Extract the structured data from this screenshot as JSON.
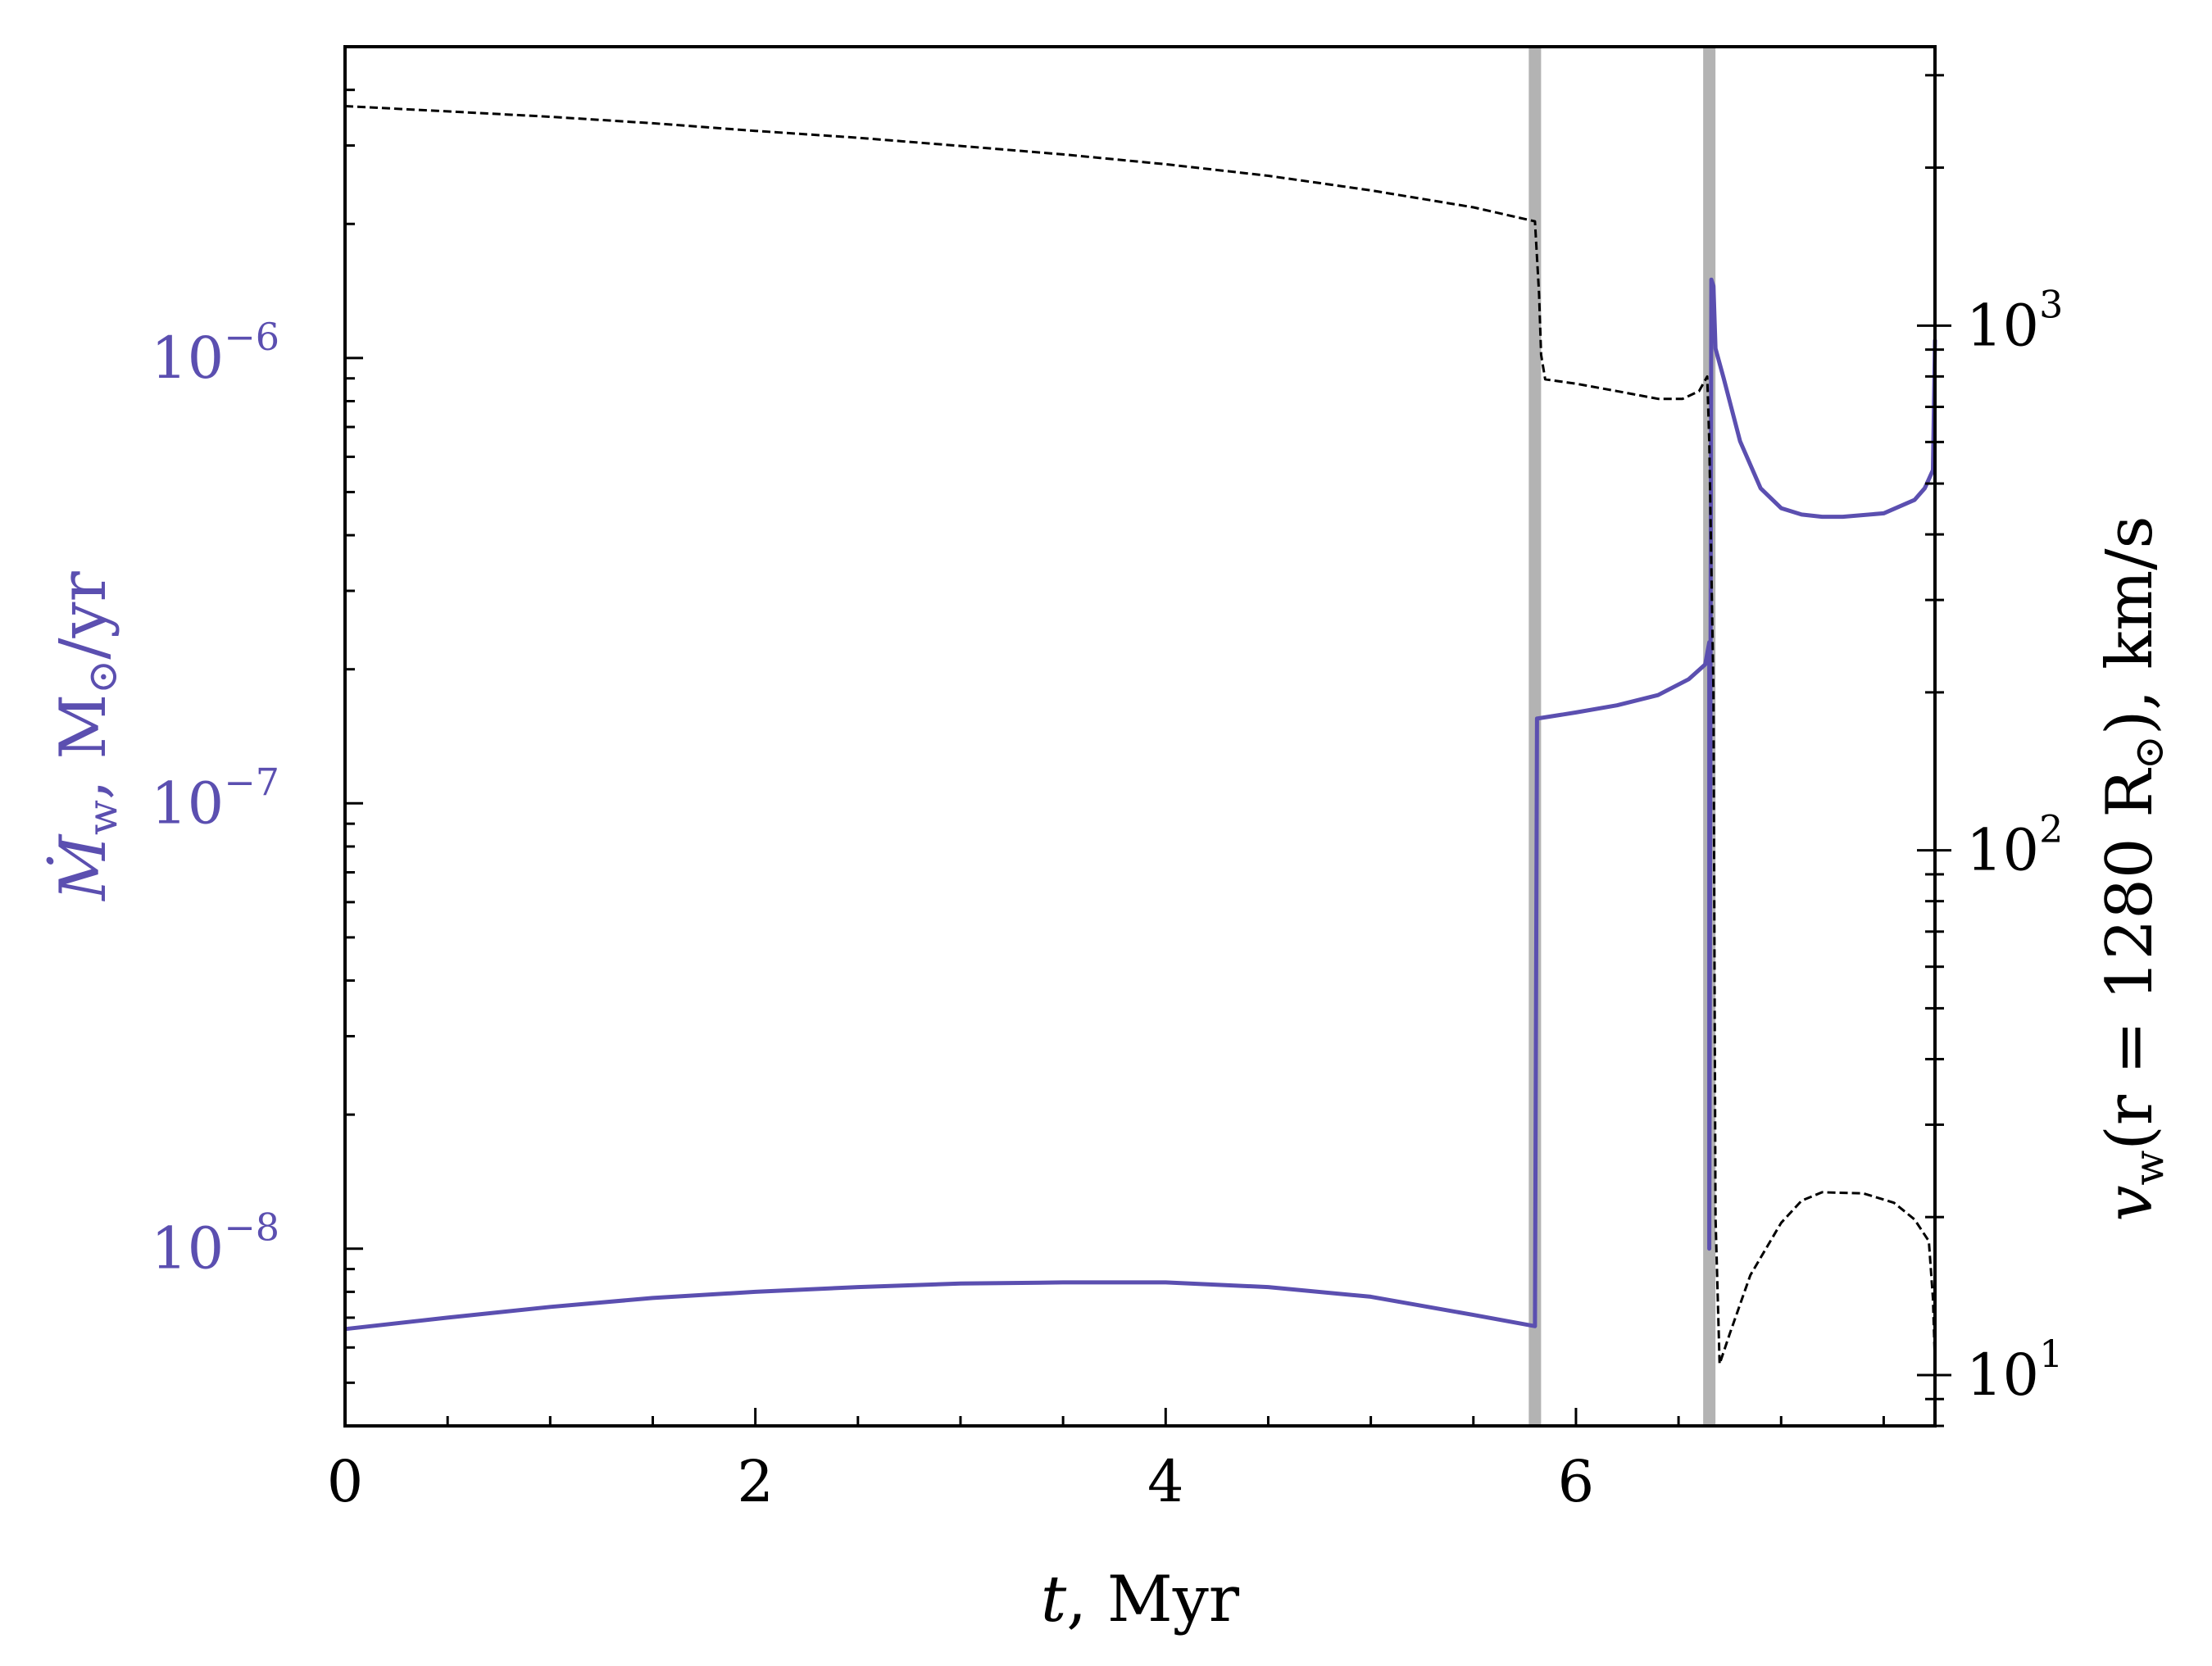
{
  "chart_data": {
    "type": "line",
    "xlabel": {
      "var": "t",
      "rest": ", Myr"
    },
    "ylabel_left": {
      "base": "Ṁ",
      "sub": "w",
      "rest": ", M",
      "sun": "⊙",
      "tail": "/yr"
    },
    "ylabel_right": {
      "base": "v",
      "sub": "w",
      "mid": "(r = 1280 R",
      "sun": "⊙",
      "tail": "), km/s"
    },
    "xlim": [
      0,
      7.75
    ],
    "ylim_left": [
      4e-09,
      5e-06
    ],
    "ylim_right": [
      8,
      3400
    ],
    "log_left": true,
    "log_right": true,
    "x_ticks": [
      {
        "value": 0,
        "label": "0"
      },
      {
        "value": 2,
        "label": "2"
      },
      {
        "value": 4,
        "label": "4"
      },
      {
        "value": 6,
        "label": "6"
      }
    ],
    "left_ticks": [
      {
        "value": 1e-08,
        "base": "10",
        "exp": "−8"
      },
      {
        "value": 1e-07,
        "base": "10",
        "exp": "−7"
      },
      {
        "value": 1e-06,
        "base": "10",
        "exp": "−6"
      }
    ],
    "right_ticks": [
      {
        "value": 10,
        "base": "10",
        "exp": "1"
      },
      {
        "value": 100,
        "base": "10",
        "exp": "2"
      },
      {
        "value": 1000,
        "base": "10",
        "exp": "3"
      }
    ],
    "shaded_bands": [
      {
        "x0": 5.77,
        "x1": 5.83,
        "color": "#b3b3b3"
      },
      {
        "x0": 6.62,
        "x1": 6.68,
        "color": "#b3b3b3"
      }
    ],
    "series": [
      {
        "axis": "left",
        "color": "#5b4fb0",
        "style": "solid",
        "points": [
          [
            0,
            6.6e-09
          ],
          [
            0.5,
            7e-09
          ],
          [
            1.0,
            7.4e-09
          ],
          [
            1.5,
            7.75e-09
          ],
          [
            2.0,
            8e-09
          ],
          [
            2.5,
            8.2e-09
          ],
          [
            3.0,
            8.35e-09
          ],
          [
            3.5,
            8.4e-09
          ],
          [
            4.0,
            8.4e-09
          ],
          [
            4.5,
            8.2e-09
          ],
          [
            5.0,
            7.8e-09
          ],
          [
            5.5,
            7.1e-09
          ],
          [
            5.8,
            6.7e-09
          ],
          [
            5.81,
            1.55e-07
          ],
          [
            6.0,
            1.6e-07
          ],
          [
            6.2,
            1.66e-07
          ],
          [
            6.4,
            1.75e-07
          ],
          [
            6.55,
            1.9e-07
          ],
          [
            6.63,
            2.05e-07
          ],
          [
            6.65,
            2.3e-07
          ],
          [
            6.65,
            1e-08
          ],
          [
            6.66,
            1.5e-06
          ],
          [
            6.67,
            1.45e-06
          ],
          [
            6.68,
            1.05e-06
          ],
          [
            6.72,
            9e-07
          ],
          [
            6.8,
            6.5e-07
          ],
          [
            6.9,
            5.1e-07
          ],
          [
            7.0,
            4.6e-07
          ],
          [
            7.1,
            4.45e-07
          ],
          [
            7.2,
            4.4e-07
          ],
          [
            7.3,
            4.4e-07
          ],
          [
            7.5,
            4.48e-07
          ],
          [
            7.65,
            4.8e-07
          ],
          [
            7.7,
            5.1e-07
          ],
          [
            7.74,
            5.6e-07
          ],
          [
            7.75,
            1.1e-06
          ]
        ]
      },
      {
        "axis": "right",
        "color": "#000000",
        "style": "dashed",
        "points": [
          [
            0,
            2620
          ],
          [
            0.5,
            2560
          ],
          [
            1.0,
            2500
          ],
          [
            1.5,
            2430
          ],
          [
            2.0,
            2350
          ],
          [
            2.5,
            2280
          ],
          [
            3.0,
            2200
          ],
          [
            3.5,
            2120
          ],
          [
            4.0,
            2030
          ],
          [
            4.5,
            1930
          ],
          [
            5.0,
            1810
          ],
          [
            5.5,
            1680
          ],
          [
            5.8,
            1580
          ],
          [
            5.82,
            1150
          ],
          [
            5.83,
            880
          ],
          [
            5.85,
            790
          ],
          [
            6.0,
            775
          ],
          [
            6.2,
            750
          ],
          [
            6.4,
            725
          ],
          [
            6.52,
            725
          ],
          [
            6.6,
            750
          ],
          [
            6.64,
            800
          ],
          [
            6.65,
            600
          ],
          [
            6.67,
            200
          ],
          [
            6.68,
            20
          ],
          [
            6.7,
            10.5
          ],
          [
            6.75,
            12
          ],
          [
            6.85,
            15.5
          ],
          [
            7.0,
            19.5
          ],
          [
            7.1,
            21.5
          ],
          [
            7.2,
            22.3
          ],
          [
            7.4,
            22.2
          ],
          [
            7.55,
            21.3
          ],
          [
            7.65,
            19.8
          ],
          [
            7.72,
            18.0
          ],
          [
            7.74,
            14
          ],
          [
            7.75,
            10.5
          ]
        ]
      }
    ]
  }
}
